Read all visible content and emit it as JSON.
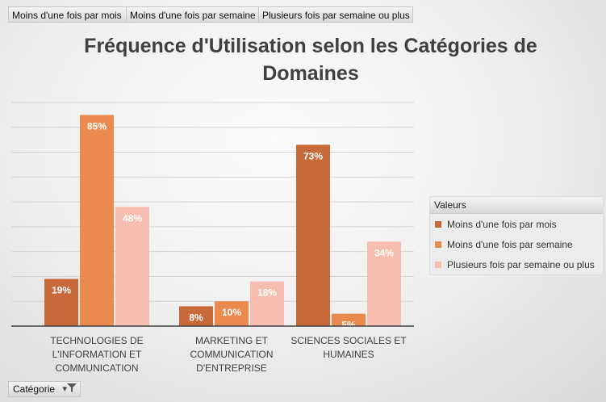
{
  "field_buttons": [
    "Moins d'une fois par mois",
    "Moins d'une fois par semaine",
    "Plusieurs fois par semaine ou plus"
  ],
  "legend": {
    "title": "Valeurs"
  },
  "category_button": {
    "label": "Catégorie",
    "icon": "filter-dropdown-icon"
  },
  "chart_data": {
    "type": "bar",
    "title": "Fréquence d'Utilisation selon les Catégories de Domaines",
    "categories": [
      [
        "TECHNOLOGIES DE",
        "L'INFORMATION ET",
        "COMMUNICATION"
      ],
      [
        "MARKETING ET",
        "COMMUNICATION",
        "D'ENTREPRISE"
      ],
      [
        "SCIENCES SOCIALES ET",
        "HUMAINES"
      ]
    ],
    "series": [
      {
        "name": "Moins d'une fois par mois",
        "values": [
          19,
          8,
          73
        ],
        "labels": [
          "19%",
          "8%",
          "73%"
        ],
        "color": "#c8693a"
      },
      {
        "name": "Moins d'une fois par semaine",
        "values": [
          85,
          10,
          5
        ],
        "labels": [
          "85%",
          "10%",
          "5%"
        ],
        "color": "#eb8a4f"
      },
      {
        "name": "Plusieurs fois par semaine ou plus",
        "values": [
          48,
          18,
          34
        ],
        "labels": [
          "48%",
          "18%",
          "34%"
        ],
        "color": "#f6bdb0"
      }
    ],
    "ylim": [
      0,
      90
    ],
    "grid": true,
    "legend_position": "right"
  }
}
